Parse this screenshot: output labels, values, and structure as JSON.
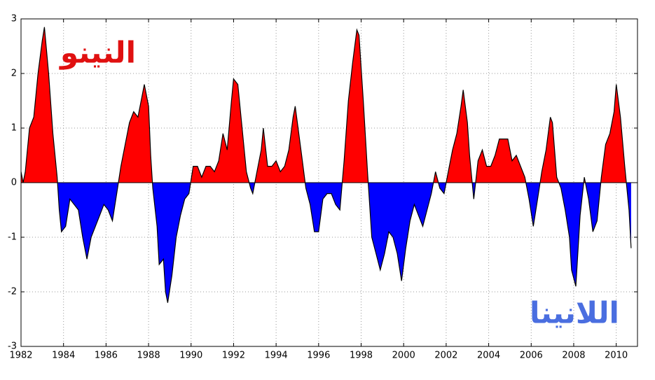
{
  "chart_data": {
    "type": "area",
    "annotations": [
      {
        "text": "النينو",
        "color": "#e01010"
      },
      {
        "text": "اللانينا",
        "color": "#4a6ee0"
      }
    ],
    "x": [
      1982.0,
      1982.1,
      1982.2,
      1982.4,
      1982.6,
      1982.8,
      1983.0,
      1983.1,
      1983.3,
      1983.5,
      1983.7,
      1983.8,
      1983.9,
      1984.1,
      1984.3,
      1984.5,
      1984.7,
      1984.9,
      1985.1,
      1985.3,
      1985.5,
      1985.7,
      1985.9,
      1986.1,
      1986.3,
      1986.5,
      1986.7,
      1986.9,
      1987.1,
      1987.3,
      1987.5,
      1987.7,
      1987.8,
      1988.0,
      1988.1,
      1988.2,
      1988.4,
      1988.5,
      1988.7,
      1988.8,
      1988.9,
      1989.1,
      1989.3,
      1989.5,
      1989.7,
      1989.9,
      1990.1,
      1990.3,
      1990.5,
      1990.7,
      1990.9,
      1991.1,
      1991.3,
      1991.5,
      1991.7,
      1991.9,
      1992.0,
      1992.2,
      1992.4,
      1992.6,
      1992.8,
      1992.9,
      1993.1,
      1993.3,
      1993.4,
      1993.6,
      1993.8,
      1994.0,
      1994.2,
      1994.4,
      1994.6,
      1994.8,
      1994.9,
      1995.2,
      1995.4,
      1995.6,
      1995.8,
      1996.0,
      1996.2,
      1996.4,
      1996.6,
      1996.8,
      1997.0,
      1997.2,
      1997.4,
      1997.6,
      1997.8,
      1997.9,
      1998.1,
      1998.3,
      1998.5,
      1998.7,
      1998.9,
      1999.1,
      1999.3,
      1999.5,
      1999.7,
      1999.9,
      2000.1,
      2000.3,
      2000.5,
      2000.7,
      2000.9,
      2001.1,
      2001.3,
      2001.5,
      2001.7,
      2001.9,
      2002.1,
      2002.3,
      2002.5,
      2002.7,
      2002.8,
      2003.0,
      2003.1,
      2003.3,
      2003.5,
      2003.7,
      2003.9,
      2004.1,
      2004.3,
      2004.5,
      2004.7,
      2004.9,
      2005.1,
      2005.3,
      2005.5,
      2005.7,
      2005.9,
      2006.1,
      2006.3,
      2006.5,
      2006.7,
      2006.9,
      2007.0,
      2007.2,
      2007.4,
      2007.6,
      2007.8,
      2007.9,
      2008.1,
      2008.3,
      2008.5,
      2008.7,
      2008.9,
      2009.1,
      2009.3,
      2009.5,
      2009.7,
      2009.9,
      2010.0,
      2010.2,
      2010.4,
      2010.6,
      2010.7
    ],
    "values": [
      0.2,
      0.0,
      0.2,
      1.0,
      1.2,
      2.0,
      2.6,
      2.85,
      2.0,
      0.9,
      0.1,
      -0.5,
      -0.9,
      -0.8,
      -0.3,
      -0.4,
      -0.5,
      -1.0,
      -1.4,
      -1.0,
      -0.8,
      -0.6,
      -0.4,
      -0.5,
      -0.7,
      -0.2,
      0.3,
      0.7,
      1.1,
      1.3,
      1.2,
      1.6,
      1.8,
      1.4,
      0.5,
      -0.1,
      -0.8,
      -1.5,
      -1.4,
      -2.0,
      -2.2,
      -1.7,
      -1.0,
      -0.6,
      -0.3,
      -0.2,
      0.3,
      0.3,
      0.1,
      0.3,
      0.3,
      0.2,
      0.4,
      0.9,
      0.6,
      1.5,
      1.9,
      1.8,
      1.0,
      0.2,
      -0.1,
      -0.2,
      0.2,
      0.6,
      1.0,
      0.3,
      0.3,
      0.4,
      0.2,
      0.3,
      0.6,
      1.2,
      1.4,
      0.5,
      -0.1,
      -0.4,
      -0.9,
      -0.9,
      -0.3,
      -0.2,
      -0.2,
      -0.4,
      -0.5,
      0.4,
      1.5,
      2.2,
      2.8,
      2.7,
      1.5,
      0.2,
      -1.0,
      -1.3,
      -1.6,
      -1.3,
      -0.9,
      -1.0,
      -1.3,
      -1.8,
      -1.2,
      -0.7,
      -0.4,
      -0.6,
      -0.8,
      -0.5,
      -0.2,
      0.2,
      -0.1,
      -0.2,
      0.2,
      0.6,
      0.9,
      1.4,
      1.7,
      1.1,
      0.5,
      -0.3,
      0.4,
      0.6,
      0.3,
      0.3,
      0.5,
      0.8,
      0.8,
      0.8,
      0.4,
      0.5,
      0.3,
      0.1,
      -0.3,
      -0.8,
      -0.3,
      0.2,
      0.6,
      1.2,
      1.1,
      0.1,
      -0.1,
      -0.5,
      -1.0,
      -1.6,
      -1.9,
      -0.6,
      0.1,
      -0.3,
      -0.9,
      -0.7,
      0.1,
      0.7,
      0.9,
      1.3,
      1.8,
      1.2,
      0.3,
      -0.5,
      -1.2
    ],
    "positive_color": "#ff0000",
    "negative_color": "#0000ff",
    "xlim": [
      1982,
      2011
    ],
    "ylim": [
      -3,
      3
    ],
    "xticks": [
      1982,
      1984,
      1986,
      1988,
      1990,
      1992,
      1994,
      1996,
      1998,
      2000,
      2002,
      2004,
      2006,
      2008,
      2010
    ],
    "yticks": [
      -3,
      -2,
      -1,
      0,
      1,
      2,
      3
    ],
    "grid": true
  }
}
